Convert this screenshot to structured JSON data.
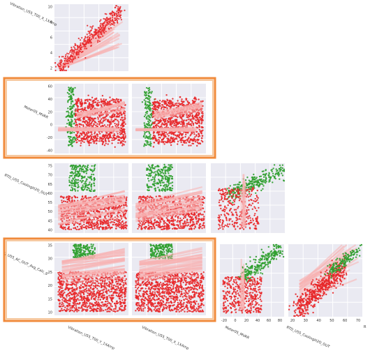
{
  "chart_data": {
    "type": "scatter",
    "subtype": "pair-grid-lower-triangle",
    "variables": [
      "Vibration_U55_T00_X_1XAmp",
      "Meter05_MVAR",
      "RTD_U55_CoolingH2O_OUT",
      "TI_U55_AC_OUT_Avg_Calc_g"
    ],
    "x_variables": [
      "Vibration_U55_T00_Y_1XAmp",
      "Vibration_U55_T00_X_1XAmp",
      "Meter05_MVAR",
      "RTD_U55_CoolingH2O_OUT"
    ],
    "x_axis_labels": [
      "Vibration_U55_T00_Y_1XAmp",
      "Vibration_U55_T00_X_1XAmp",
      "Meter05_MVAR",
      "RTD_U55_CoolingH2O_OUT",
      "R"
    ],
    "series": [
      {
        "color": "#2e9e2e"
      },
      {
        "color": "#e8282a"
      }
    ],
    "regression_line_color": "#f7b0b0",
    "grid": true,
    "y_ticks": {
      "row0": [
        "10",
        "8",
        "6",
        "4",
        "2"
      ],
      "row1": [
        "60",
        "40",
        "20",
        "0",
        "-20",
        "-40"
      ],
      "row2": [
        "75",
        "70",
        "65",
        "60",
        "55",
        "50",
        "45",
        "40"
      ],
      "row3": [
        "35",
        "30",
        "25",
        "20",
        "15",
        "10"
      ]
    },
    "x_ticks": {
      "col2": [
        "-20",
        "0",
        "20",
        "40",
        "60",
        "80"
      ],
      "col3": [
        "20",
        "30",
        "40",
        "50",
        "60",
        "70"
      ]
    },
    "ylim": {
      "row0": [
        1,
        11
      ],
      "row1": [
        -45,
        65
      ],
      "row2": [
        37,
        78
      ],
      "row3": [
        7,
        38
      ]
    },
    "xlim": {
      "col2": [
        -30,
        80
      ],
      "col3": [
        12,
        78
      ]
    },
    "highlighted_rows": [
      "Meter05_MVAR",
      "TI_U55_AC_OUT_Avg_Calc_g"
    ],
    "highlight_color": "#f08a3a"
  }
}
